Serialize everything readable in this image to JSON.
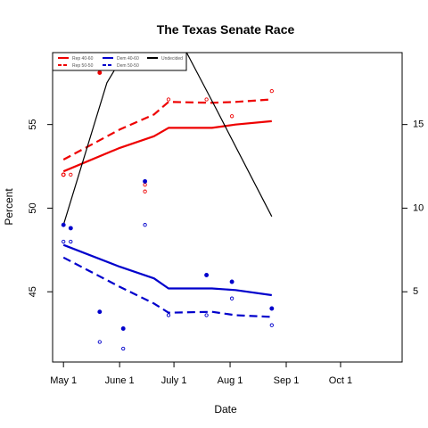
{
  "chart_data": {
    "type": "line",
    "title": "The Texas Senate Race",
    "xlabel": "Date",
    "ylabel": "Percent",
    "x_ticks": [
      {
        "date": "2012-05-01",
        "label": "May 1"
      },
      {
        "date": "2012-06-01",
        "label": "June 1"
      },
      {
        "date": "2012-07-01",
        "label": "July 1"
      },
      {
        "date": "2012-08-01",
        "label": "Aug 1"
      },
      {
        "date": "2012-09-01",
        "label": "Sep 1"
      },
      {
        "date": "2012-10-01",
        "label": "Oct 1"
      }
    ],
    "xlim": [
      "2012-04-25",
      "2012-11-04"
    ],
    "ylim": [
      40.8,
      59.3
    ],
    "y_ticks": [
      45,
      50,
      55
    ],
    "y2lim": [
      0.8,
      19.3
    ],
    "y2_ticks": [
      5,
      10,
      15
    ],
    "legend": {
      "position": "top-left",
      "entries": [
        {
          "label": "Rep 40-60",
          "color": "#ee0000",
          "dash": "solid"
        },
        {
          "label": "Rep 50-50",
          "color": "#ee0000",
          "dash": "dashed"
        },
        {
          "label": "Dem 40-60",
          "color": "#0000cc",
          "dash": "solid"
        },
        {
          "label": "Dem 50-50",
          "color": "#0000cc",
          "dash": "dashed"
        },
        {
          "label": "Undecided",
          "color": "#000000",
          "dash": "solid"
        }
      ]
    },
    "series": [
      {
        "name": "Rep 40-60",
        "axis": "left",
        "color": "#ee0000",
        "dash": "solid",
        "points": [
          [
            "2012-05-01",
            52.2
          ],
          [
            "2012-06-01",
            53.6
          ],
          [
            "2012-06-20",
            54.3
          ],
          [
            "2012-06-28",
            54.8
          ],
          [
            "2012-07-22",
            54.8
          ],
          [
            "2012-08-04",
            55.0
          ],
          [
            "2012-08-24",
            55.2
          ]
        ]
      },
      {
        "name": "Rep 50-50",
        "axis": "left",
        "color": "#ee0000",
        "dash": "dashed",
        "points": [
          [
            "2012-05-01",
            52.9
          ],
          [
            "2012-06-01",
            54.7
          ],
          [
            "2012-06-20",
            55.6
          ],
          [
            "2012-06-28",
            56.35
          ],
          [
            "2012-07-22",
            56.3
          ],
          [
            "2012-08-04",
            56.35
          ],
          [
            "2012-08-24",
            56.5
          ]
        ]
      },
      {
        "name": "Dem 40-60",
        "axis": "left",
        "color": "#0000cc",
        "dash": "solid",
        "points": [
          [
            "2012-05-01",
            47.8
          ],
          [
            "2012-06-01",
            46.5
          ],
          [
            "2012-06-20",
            45.8
          ],
          [
            "2012-06-28",
            45.2
          ],
          [
            "2012-07-22",
            45.2
          ],
          [
            "2012-08-04",
            45.1
          ],
          [
            "2012-08-24",
            44.8
          ]
        ]
      },
      {
        "name": "Dem 50-50",
        "axis": "left",
        "color": "#0000cc",
        "dash": "dashed",
        "points": [
          [
            "2012-05-01",
            47.05
          ],
          [
            "2012-06-01",
            45.3
          ],
          [
            "2012-06-20",
            44.3
          ],
          [
            "2012-06-28",
            43.75
          ],
          [
            "2012-07-22",
            43.8
          ],
          [
            "2012-08-04",
            43.6
          ],
          [
            "2012-08-24",
            43.5
          ]
        ]
      },
      {
        "name": "Undecided",
        "axis": "right",
        "color": "#000000",
        "dash": "solid",
        "points": [
          [
            "2012-05-01",
            9.0
          ],
          [
            "2012-05-25",
            17.5
          ],
          [
            "2012-06-04",
            19.3
          ],
          [
            "2012-07-08",
            19.3
          ],
          [
            "2012-07-24",
            16.0
          ],
          [
            "2012-08-24",
            9.5
          ]
        ]
      }
    ],
    "observations": [
      {
        "series": "Rep 40-60",
        "color": "#ee0000",
        "filled": true,
        "points": [
          [
            "2012-05-01",
            52.0
          ],
          [
            "2012-05-21",
            58.1
          ]
        ]
      },
      {
        "series": "Rep 50-50",
        "color": "#ee0000",
        "filled": false,
        "points": [
          [
            "2012-05-01",
            52.0
          ],
          [
            "2012-05-05",
            52.0
          ],
          [
            "2012-06-15",
            51.0
          ],
          [
            "2012-06-15",
            51.4
          ],
          [
            "2012-06-28",
            56.5
          ],
          [
            "2012-07-19",
            56.5
          ],
          [
            "2012-08-02",
            55.5
          ],
          [
            "2012-08-24",
            57.0
          ]
        ]
      },
      {
        "series": "Dem 40-60",
        "color": "#0000cc",
        "filled": true,
        "points": [
          [
            "2012-05-01",
            49.0
          ],
          [
            "2012-05-05",
            48.8
          ],
          [
            "2012-05-21",
            43.8
          ],
          [
            "2012-06-03",
            42.8
          ],
          [
            "2012-06-15",
            51.6
          ],
          [
            "2012-07-19",
            46.0
          ],
          [
            "2012-08-02",
            45.6
          ],
          [
            "2012-08-24",
            44.0
          ]
        ]
      },
      {
        "series": "Dem 50-50",
        "color": "#0000cc",
        "filled": false,
        "points": [
          [
            "2012-05-01",
            48.0
          ],
          [
            "2012-05-05",
            48.0
          ],
          [
            "2012-05-21",
            42.0
          ],
          [
            "2012-06-03",
            41.6
          ],
          [
            "2012-06-15",
            49.0
          ],
          [
            "2012-06-28",
            43.6
          ],
          [
            "2012-07-19",
            43.6
          ],
          [
            "2012-08-02",
            44.6
          ],
          [
            "2012-08-24",
            43.0
          ]
        ]
      }
    ]
  }
}
